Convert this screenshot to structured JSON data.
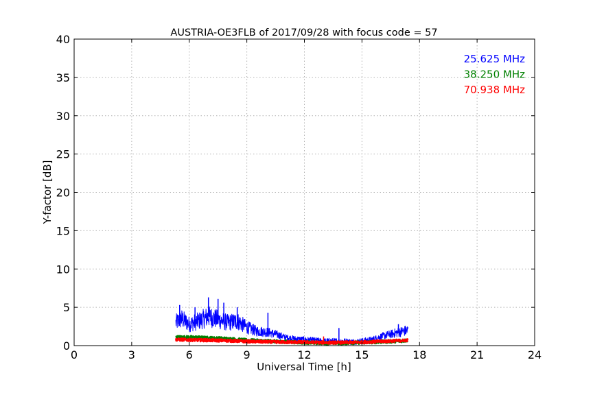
{
  "chart_data": {
    "type": "line",
    "title": "AUSTRIA-OE3FLB of 2017/09/28 with focus code = 57",
    "xlabel": "Universal Time [h]",
    "ylabel": "Y-factor [dB]",
    "xlim": [
      0,
      24
    ],
    "ylim": [
      0,
      40
    ],
    "xticks": [
      "0",
      "3",
      "6",
      "9",
      "12",
      "15",
      "18",
      "21",
      "24"
    ],
    "yticks": [
      "0",
      "5",
      "10",
      "15",
      "20",
      "25",
      "30",
      "35",
      "40"
    ],
    "grid": true,
    "legend_position": "top-right",
    "series": [
      {
        "name": "25.625 MHz",
        "color": "#0000ff",
        "points": [
          [
            5.3,
            3.0
          ],
          [
            5.6,
            3.5
          ],
          [
            6.0,
            2.8
          ],
          [
            6.5,
            3.2
          ],
          [
            7.0,
            3.8
          ],
          [
            7.5,
            3.4
          ],
          [
            8.0,
            3.0
          ],
          [
            8.5,
            3.2
          ],
          [
            9.0,
            2.4
          ],
          [
            9.5,
            1.9
          ],
          [
            10.0,
            1.8
          ],
          [
            10.5,
            1.5
          ],
          [
            11.0,
            1.1
          ],
          [
            11.5,
            0.9
          ],
          [
            12.0,
            0.8
          ],
          [
            12.5,
            0.7
          ],
          [
            13.0,
            0.6
          ],
          [
            13.5,
            0.6
          ],
          [
            14.0,
            0.6
          ],
          [
            14.5,
            0.5
          ],
          [
            15.0,
            0.6
          ],
          [
            15.5,
            0.8
          ],
          [
            16.0,
            1.2
          ],
          [
            16.5,
            1.5
          ],
          [
            17.0,
            1.8
          ],
          [
            17.4,
            2.0
          ]
        ],
        "spikes": [
          [
            5.5,
            5.3
          ],
          [
            6.3,
            5.0
          ],
          [
            7.0,
            6.3
          ],
          [
            7.5,
            6.1
          ],
          [
            7.8,
            5.6
          ],
          [
            8.5,
            5.0
          ],
          [
            10.1,
            4.3
          ],
          [
            13.8,
            2.3
          ],
          [
            16.9,
            2.8
          ]
        ]
      },
      {
        "name": "38.250 MHz",
        "color": "#008000",
        "points": [
          [
            5.3,
            1.1
          ],
          [
            6.0,
            1.1
          ],
          [
            7.0,
            1.0
          ],
          [
            8.0,
            0.9
          ],
          [
            9.0,
            0.7
          ],
          [
            10.0,
            0.6
          ],
          [
            11.0,
            0.5
          ],
          [
            12.0,
            0.4
          ],
          [
            13.0,
            0.35
          ],
          [
            14.0,
            0.35
          ],
          [
            15.0,
            0.4
          ],
          [
            16.0,
            0.5
          ],
          [
            17.0,
            0.6
          ],
          [
            17.4,
            0.7
          ]
        ],
        "spikes": []
      },
      {
        "name": "70.938 MHz",
        "color": "#ff0000",
        "points": [
          [
            5.3,
            0.8
          ],
          [
            6.0,
            0.75
          ],
          [
            7.0,
            0.7
          ],
          [
            8.0,
            0.65
          ],
          [
            9.0,
            0.55
          ],
          [
            10.0,
            0.5
          ],
          [
            11.0,
            0.45
          ],
          [
            12.0,
            0.45
          ],
          [
            13.0,
            0.4
          ],
          [
            14.0,
            0.4
          ],
          [
            15.0,
            0.45
          ],
          [
            16.0,
            0.55
          ],
          [
            17.0,
            0.65
          ],
          [
            17.4,
            0.7
          ]
        ],
        "spikes": [
          [
            13.0,
            1.2
          ]
        ]
      }
    ]
  }
}
